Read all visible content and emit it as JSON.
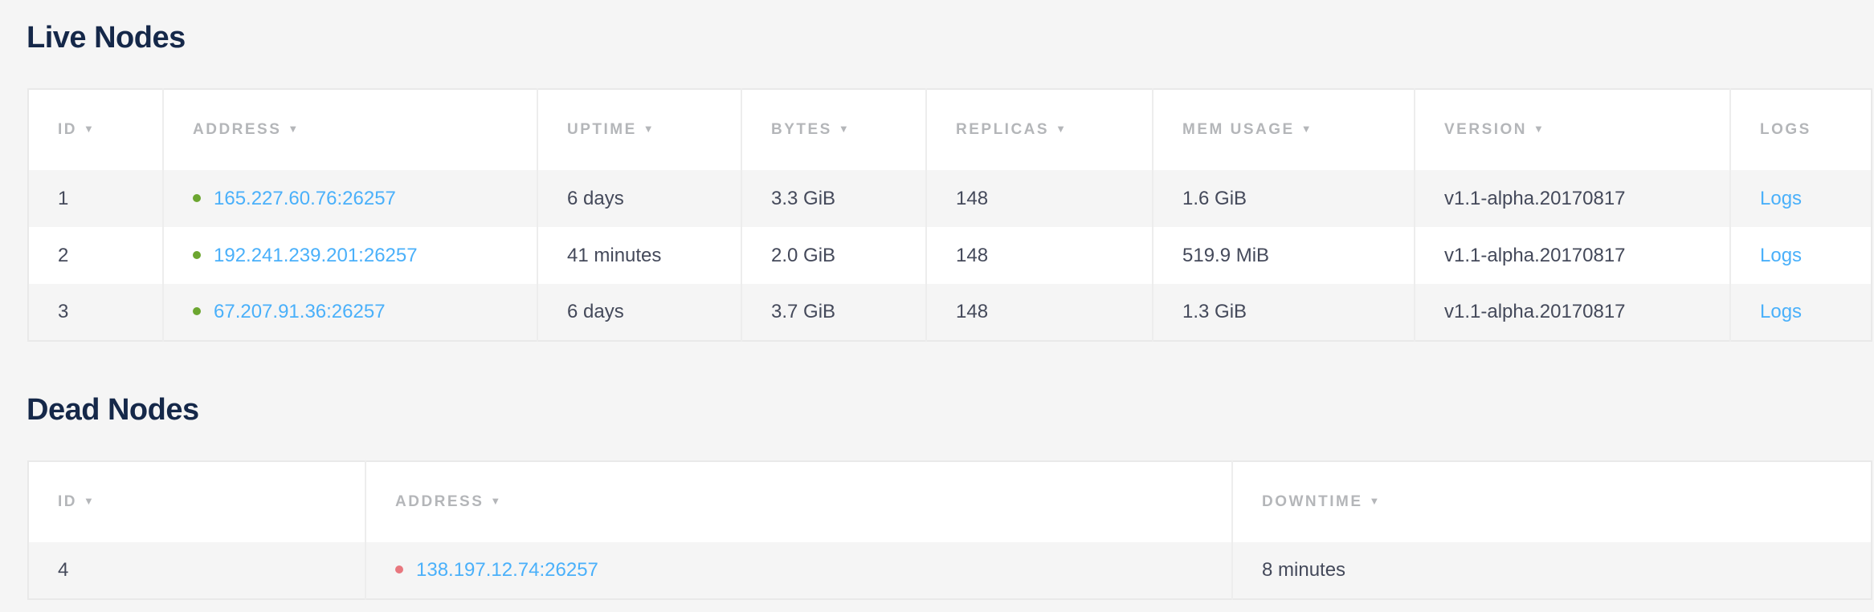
{
  "colors": {
    "live": "#6ca630",
    "dead": "#e8777e",
    "link": "#4ab0fa",
    "title": "#152849"
  },
  "live": {
    "title": "Live Nodes",
    "columns": [
      {
        "label": "ID",
        "sortable": true
      },
      {
        "label": "ADDRESS",
        "sortable": true
      },
      {
        "label": "UPTIME",
        "sortable": true
      },
      {
        "label": "BYTES",
        "sortable": true
      },
      {
        "label": "REPLICAS",
        "sortable": true
      },
      {
        "label": "MEM USAGE",
        "sortable": true
      },
      {
        "label": "VERSION",
        "sortable": true
      },
      {
        "label": "LOGS",
        "sortable": false
      }
    ],
    "sort_icon": "caret-down-icon",
    "rows": [
      {
        "id": "1",
        "address": "165.227.60.76:26257",
        "uptime": "6 days",
        "bytes": "3.3 GiB",
        "replicas": "148",
        "mem": "1.6 GiB",
        "version": "v1.1-alpha.20170817",
        "logs": "Logs"
      },
      {
        "id": "2",
        "address": "192.241.239.201:26257",
        "uptime": "41 minutes",
        "bytes": "2.0 GiB",
        "replicas": "148",
        "mem": "519.9 MiB",
        "version": "v1.1-alpha.20170817",
        "logs": "Logs"
      },
      {
        "id": "3",
        "address": "67.207.91.36:26257",
        "uptime": "6 days",
        "bytes": "3.7 GiB",
        "replicas": "148",
        "mem": "1.3 GiB",
        "version": "v1.1-alpha.20170817",
        "logs": "Logs"
      }
    ]
  },
  "dead": {
    "title": "Dead Nodes",
    "columns": [
      {
        "label": "ID",
        "sortable": true
      },
      {
        "label": "ADDRESS",
        "sortable": true
      },
      {
        "label": "DOWNTIME",
        "sortable": true
      }
    ],
    "rows": [
      {
        "id": "4",
        "address": "138.197.12.74:26257",
        "downtime": "8 minutes"
      }
    ]
  }
}
